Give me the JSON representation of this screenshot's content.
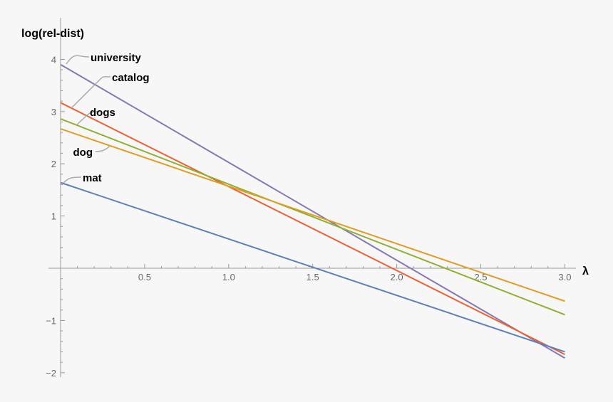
{
  "chart_data": {
    "type": "line",
    "title": "",
    "xlabel": "λ",
    "ylabel": "log(rel-dist)",
    "xlim": [
      0,
      3.05
    ],
    "ylim": [
      -2.1,
      4.2
    ],
    "x_ticks": [
      "0.5",
      "1.0",
      "1.5",
      "2.0",
      "2.5",
      "3.0"
    ],
    "x_tick_values": [
      0.5,
      1.0,
      1.5,
      2.0,
      2.5,
      3.0
    ],
    "y_ticks": [
      "−2",
      "−1",
      "1",
      "2",
      "3",
      "4"
    ],
    "y_tick_values": [
      -2,
      -1,
      1,
      2,
      3,
      4
    ],
    "grid": false,
    "legend": "callout labels at line starts",
    "series": [
      {
        "name": "university",
        "color": "#8778B3",
        "x": [
          0,
          3
        ],
        "y": [
          3.9,
          -1.72
        ]
      },
      {
        "name": "catalog",
        "color": "#EB6235",
        "x": [
          0,
          3
        ],
        "y": [
          3.17,
          -1.65
        ]
      },
      {
        "name": "dogs",
        "color": "#8FB032",
        "x": [
          0,
          3
        ],
        "y": [
          2.86,
          -0.89
        ]
      },
      {
        "name": "dog",
        "color": "#E19C24",
        "x": [
          0,
          3
        ],
        "y": [
          2.67,
          -0.63
        ]
      },
      {
        "name": "mat",
        "color": "#5E81B5",
        "x": [
          0,
          3
        ],
        "y": [
          1.64,
          -1.6
        ]
      }
    ]
  }
}
